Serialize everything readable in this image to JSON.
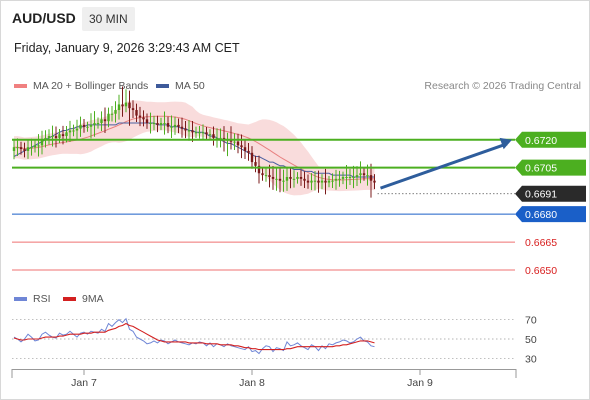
{
  "header": {
    "symbol": "AUD/USD",
    "timeframe": "30 MIN",
    "timestamp": "Friday, January 9, 2026 3:29:43 AM CET",
    "credit": "Research © 2026 Trading Central"
  },
  "colors": {
    "candle_up": "#4caf20",
    "candle_down": "#7a1a1a",
    "bollinger_fill": "#f8d6d6",
    "ma20": "#e88080",
    "ma50": "#4a5fa0",
    "resistance": "#4caf20",
    "pivot": "#1a5fc8",
    "support": "#ef7070",
    "support_text": "#d81e1e",
    "arrow": "#2e5d9c",
    "rsi": "#6f86d6",
    "rsi_ma": "#d32020"
  },
  "chart_data": [
    {
      "type": "candlestick",
      "legend": [
        {
          "name": "MA 20 + Bollinger Bands",
          "color": "#f08080"
        },
        {
          "name": "MA 50",
          "color": "#3e5a9a"
        }
      ],
      "x_ticks": [
        {
          "label": "Jan 7",
          "bar": 20
        },
        {
          "label": "Jan 8",
          "bar": 68
        },
        {
          "label": "Jan 9",
          "bar": 116
        }
      ],
      "ylim": [
        0.6643,
        0.6743
      ],
      "current_price": 0.6691,
      "levels": [
        {
          "label": "0.6720",
          "value": 0.672,
          "kind": "resistance",
          "target": true
        },
        {
          "label": "0.6705",
          "value": 0.6705,
          "kind": "resistance"
        },
        {
          "label": "0.6680",
          "value": 0.668,
          "kind": "pivot"
        },
        {
          "label": "0.6665",
          "value": 0.6665,
          "kind": "support"
        },
        {
          "label": "0.6650",
          "value": 0.665,
          "kind": "support"
        }
      ],
      "forecast_arrow": {
        "from": 0.6694,
        "to": 0.672
      },
      "close": [
        0.6716,
        0.6716,
        0.6715,
        0.6714,
        0.6716,
        0.6716,
        0.6717,
        0.6717,
        0.672,
        0.6721,
        0.6722,
        0.6722,
        0.6721,
        0.6723,
        0.6722,
        0.6724,
        0.6725,
        0.6725,
        0.6726,
        0.6728,
        0.6727,
        0.6727,
        0.6728,
        0.6729,
        0.6729,
        0.6731,
        0.673,
        0.6734,
        0.6734,
        0.6736,
        0.6739,
        0.6738,
        0.674,
        0.6737,
        0.6736,
        0.6733,
        0.6732,
        0.6731,
        0.6729,
        0.6729,
        0.6729,
        0.6728,
        0.6729,
        0.6729,
        0.6727,
        0.6727,
        0.6728,
        0.6727,
        0.6726,
        0.6725,
        0.6725,
        0.6724,
        0.6724,
        0.6724,
        0.6724,
        0.6723,
        0.6723,
        0.6721,
        0.6721,
        0.6721,
        0.672,
        0.672,
        0.6719,
        0.6719,
        0.6717,
        0.6716,
        0.6714,
        0.6713,
        0.6708,
        0.6706,
        0.6702,
        0.6701,
        0.6701,
        0.67,
        0.6699,
        0.6699,
        0.6698,
        0.6698,
        0.67,
        0.6699,
        0.6699,
        0.67,
        0.6699,
        0.6698,
        0.6697,
        0.6698,
        0.6698,
        0.6697,
        0.6698,
        0.6697,
        0.6698,
        0.6698,
        0.6699,
        0.6699,
        0.67,
        0.67,
        0.67,
        0.67,
        0.6701,
        0.6702,
        0.6701,
        0.6701,
        0.6698,
        0.6697
      ],
      "ma50": [
        0.6711,
        0.6712,
        0.6713,
        0.6714,
        0.6715,
        0.6716,
        0.6717,
        0.6718,
        0.6719,
        0.672,
        0.6721,
        0.6722,
        0.6723,
        0.6724,
        0.6725,
        0.6725,
        0.6726,
        0.6726,
        0.6727,
        0.6727,
        0.6727,
        0.6728,
        0.6728,
        0.6728,
        0.6728,
        0.6728,
        0.6728,
        0.6728,
        0.6728,
        0.6728,
        0.6729,
        0.6729,
        0.6729,
        0.6729,
        0.6729,
        0.6729,
        0.6729,
        0.6729,
        0.6729,
        0.6729,
        0.6729,
        0.6728,
        0.6728,
        0.6728,
        0.6728,
        0.6727,
        0.6727,
        0.6727,
        0.6726,
        0.6726,
        0.6725,
        0.6725,
        0.6724,
        0.6724,
        0.6724,
        0.6723,
        0.6722,
        0.6722,
        0.6721,
        0.672,
        0.6719,
        0.6718,
        0.6718,
        0.6717,
        0.6716,
        0.6715,
        0.6714,
        0.6713,
        0.6712,
        0.6711,
        0.6711,
        0.671,
        0.6709,
        0.6708,
        0.6708,
        0.6707,
        0.6706,
        0.6706,
        0.6705,
        0.6705,
        0.6704,
        0.6704,
        0.6704,
        0.6703,
        0.6703,
        0.6703,
        0.6702,
        0.6702,
        0.6702,
        0.6702,
        0.6702,
        0.6701,
        0.6701,
        0.6701,
        0.6701,
        0.6701,
        0.6701,
        0.67,
        0.67,
        0.67,
        0.67,
        0.67,
        0.67,
        0.67
      ]
    },
    {
      "type": "line",
      "legend": [
        {
          "name": "RSI",
          "color": "#6f86d6"
        },
        {
          "name": "9MA",
          "color": "#d32020"
        }
      ],
      "y_ticks": [
        30,
        50,
        70
      ],
      "ylim": [
        20,
        80
      ],
      "rsi": [
        52,
        50,
        47,
        50,
        55,
        52,
        48,
        49,
        55,
        57,
        54,
        52,
        51,
        56,
        54,
        55,
        58,
        55,
        52,
        56,
        57,
        55,
        58,
        57,
        56,
        60,
        58,
        66,
        63,
        67,
        70,
        67,
        71,
        60,
        58,
        52,
        50,
        48,
        45,
        46,
        48,
        46,
        49,
        48,
        45,
        47,
        49,
        47,
        46,
        45,
        44,
        46,
        45,
        47,
        46,
        43,
        46,
        42,
        45,
        44,
        42,
        45,
        43,
        42,
        41,
        40,
        39,
        42,
        37,
        38,
        35,
        40,
        43,
        42,
        37,
        41,
        40,
        38,
        47,
        43,
        44,
        46,
        43,
        41,
        39,
        44,
        42,
        38,
        43,
        40,
        45,
        44,
        46,
        47,
        49,
        48,
        46,
        47,
        50,
        52,
        48,
        47,
        43,
        42
      ],
      "ma9": [
        51,
        50,
        49,
        49,
        50,
        50,
        50,
        50,
        51,
        52,
        52,
        52,
        52,
        53,
        53,
        54,
        55,
        55,
        55,
        55,
        56,
        56,
        56,
        57,
        57,
        57,
        57,
        59,
        60,
        61,
        63,
        64,
        66,
        64,
        63,
        61,
        59,
        57,
        55,
        53,
        51,
        49,
        48,
        47,
        47,
        47,
        47,
        47,
        47,
        47,
        46,
        46,
        46,
        46,
        46,
        45,
        45,
        45,
        45,
        44,
        44,
        44,
        44,
        43,
        43,
        42,
        41,
        41,
        40,
        40,
        39,
        39,
        39,
        39,
        39,
        39,
        39,
        39,
        40,
        40,
        41,
        42,
        42,
        42,
        42,
        42,
        42,
        42,
        42,
        42,
        42,
        42,
        43,
        43,
        44,
        44,
        45,
        46,
        47,
        48,
        48,
        48,
        47,
        46
      ]
    }
  ]
}
